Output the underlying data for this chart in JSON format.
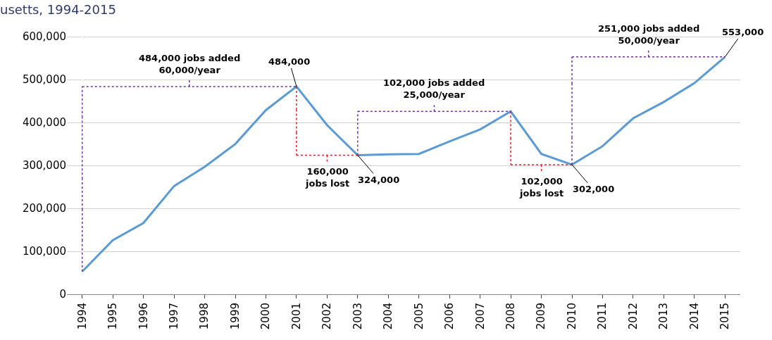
{
  "chart_data": {
    "type": "line",
    "title": "usetts, 1994-2015",
    "categories": [
      "1994",
      "1995",
      "1996",
      "1997",
      "1998",
      "1999",
      "2000",
      "2001",
      "2002",
      "2003",
      "2004",
      "2005",
      "2006",
      "2007",
      "2008",
      "2009",
      "2010",
      "2011",
      "2012",
      "2013",
      "2014",
      "2015"
    ],
    "series": [
      {
        "color": "#5b9bd5",
        "values": [
          53000,
          126000,
          166000,
          252000,
          297000,
          350000,
          429000,
          484000,
          394000,
          324000,
          326000,
          327000,
          356000,
          384000,
          426000,
          327000,
          302000,
          345000,
          410000,
          448000,
          492000,
          553000
        ],
        "value_labels": [
          null,
          null,
          null,
          null,
          null,
          null,
          null,
          "484,000",
          null,
          "324,000",
          null,
          null,
          null,
          null,
          null,
          null,
          "302,000",
          null,
          null,
          null,
          null,
          "553,000"
        ]
      }
    ],
    "ylim": [
      0,
      620000
    ],
    "yticks": [
      {
        "value": 0,
        "label": "0"
      },
      {
        "value": 100000,
        "label": "100,000"
      },
      {
        "value": 200000,
        "label": "200,000"
      },
      {
        "value": 300000,
        "label": "300,000"
      },
      {
        "value": 400000,
        "label": "400,000"
      },
      {
        "value": 500000,
        "label": "500,000"
      },
      {
        "value": 600000,
        "label": "600,000"
      }
    ],
    "grid": "y",
    "marker": "none",
    "line_style": "solid",
    "annotations": [
      "484,000 jobs added\n60,000/year",
      "160,000\njobs lost",
      "102,000 jobs added\n25,000/year",
      "102,000\njobs lost",
      "251,000 jobs added\n50,000/year"
    ]
  }
}
